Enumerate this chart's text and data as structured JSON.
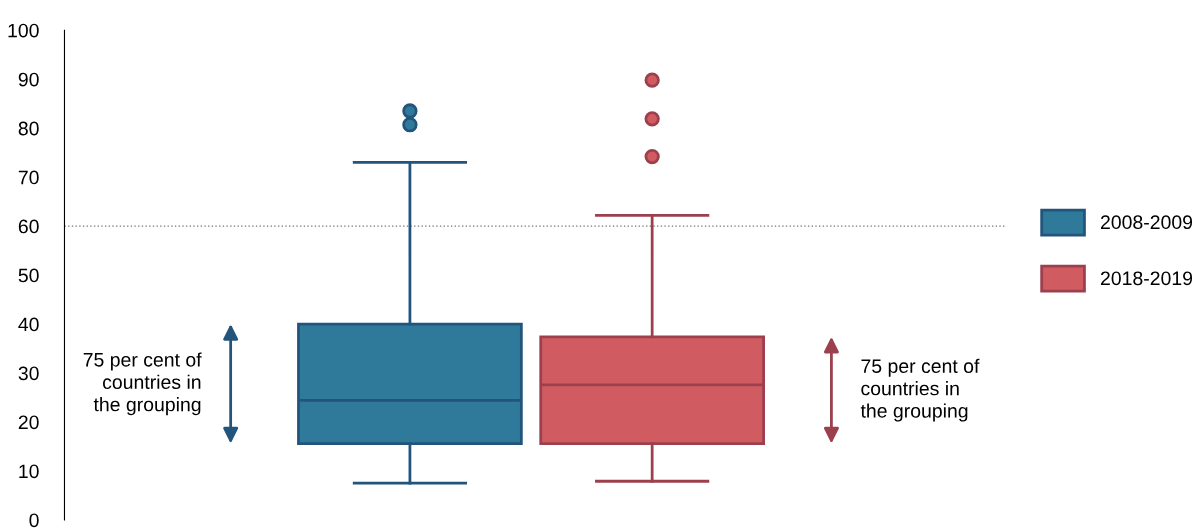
{
  "chart_data": {
    "type": "box",
    "categories": [
      null,
      null
    ],
    "series": [
      {
        "name": "2008-2009",
        "color": "#2f7a9b",
        "boxes": [
          {
            "low": 7.5,
            "q1": 15.6,
            "median": 24.4,
            "q3": 40,
            "high": 73,
            "outliers": [
              83.5,
              80.7
            ]
          },
          null
        ]
      },
      {
        "name": "2018-2019",
        "color": "#d05c62",
        "boxes": [
          null,
          {
            "low": 7.9,
            "q1": 15.6,
            "median": 27.6,
            "q3": 37.4,
            "high": 62.2,
            "outliers": [
              89.8,
              81.9,
              74.2
            ]
          }
        ]
      }
    ],
    "ylim": [
      0,
      100
    ],
    "yticks": [
      0,
      10,
      20,
      30,
      40,
      50,
      60,
      70,
      80,
      90,
      100
    ],
    "ref_lines": [
      {
        "axis": "y",
        "value": 60,
        "color": "#777777",
        "line_style": "dotted"
      }
    ],
    "annotations": [
      "75 per cent of\ncountries in\nthe grouping",
      "75 per cent of\ncountries in\nthe grouping"
    ],
    "legend": "right",
    "grid": false
  }
}
